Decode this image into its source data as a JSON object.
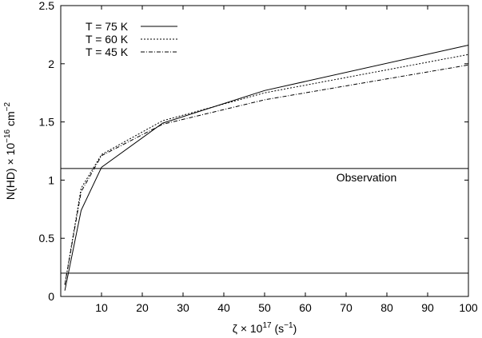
{
  "chart_data": {
    "type": "line",
    "xlabel": {
      "base": "ζ × 10",
      "sup": "17",
      "tail": " (s",
      "sup2": "−1",
      "end": ")"
    },
    "ylabel": {
      "base": "N(HD) × 10",
      "sup": "−16",
      "mid": " cm",
      "sup2": "−2"
    },
    "xlim": [
      0,
      100
    ],
    "ylim": [
      0,
      2.5
    ],
    "xticks": [
      10,
      20,
      30,
      40,
      50,
      60,
      70,
      80,
      90,
      100
    ],
    "yticks": [
      0,
      0.5,
      1,
      1.5,
      2,
      2.5
    ],
    "ytick_labels": [
      "0",
      "0.5",
      "1",
      "1.5",
      "2",
      "2.5"
    ],
    "grid": false,
    "legend_position": "top-left",
    "series": [
      {
        "name": "T = 75 K",
        "dash": "solid",
        "x": [
          1,
          5,
          10,
          25,
          50,
          100
        ],
        "y": [
          0.05,
          0.74,
          1.11,
          1.49,
          1.77,
          2.16
        ]
      },
      {
        "name": "T = 60 K",
        "dash": "dotted",
        "x": [
          1,
          5,
          10,
          25,
          50,
          100
        ],
        "y": [
          0.1,
          0.93,
          1.22,
          1.51,
          1.75,
          2.08
        ]
      },
      {
        "name": "T = 45 K",
        "dash": "dashdot",
        "x": [
          1,
          5,
          10,
          25,
          50,
          100
        ],
        "y": [
          0.1,
          0.9,
          1.21,
          1.48,
          1.69,
          1.99
        ]
      }
    ],
    "hlines": [
      {
        "y": 1.1
      },
      {
        "y": 0.2
      }
    ],
    "annotations": [
      {
        "text": "Observation",
        "x": 75,
        "y": 0.99
      }
    ]
  }
}
